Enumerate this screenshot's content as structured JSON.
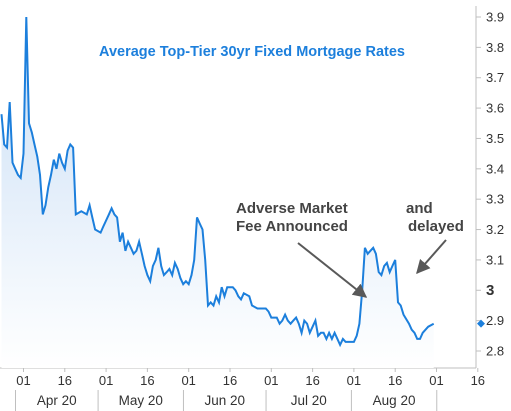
{
  "chart_data": {
    "type": "area",
    "title": "Average Top-Tier 30yr Fixed Mortgage Rates",
    "ylim": [
      2.75,
      3.92
    ],
    "y_ticks": [
      "3.9",
      "3.8",
      "3.7",
      "3.6",
      "3.5",
      "3.4",
      "3.3",
      "3.2",
      "3.1",
      "3",
      "2.9",
      "2.8"
    ],
    "emphasized_y_tick": "3",
    "x_day_ticks": [
      "01",
      "16",
      "01",
      "16",
      "01",
      "16",
      "01",
      "16",
      "01",
      "16",
      "01",
      "16"
    ],
    "x_month_labels": [
      "Apr 20",
      "May 20",
      "Jun 20",
      "Jul 20",
      "Aug 20"
    ],
    "series": [
      {
        "values": [
          [
            -8,
            3.58
          ],
          [
            -7,
            3.48
          ],
          [
            -6,
            3.47
          ],
          [
            -5,
            3.62
          ],
          [
            -4,
            3.42
          ],
          [
            -3,
            3.4
          ],
          [
            -2,
            3.38
          ],
          [
            -1,
            3.37
          ],
          [
            0,
            3.45
          ],
          [
            1,
            3.9
          ],
          [
            2,
            3.55
          ],
          [
            3,
            3.52
          ],
          [
            4,
            3.48
          ],
          [
            5,
            3.44
          ],
          [
            6,
            3.38
          ],
          [
            7,
            3.25
          ],
          [
            8,
            3.28
          ],
          [
            9,
            3.34
          ],
          [
            10,
            3.38
          ],
          [
            11,
            3.43
          ],
          [
            12,
            3.4
          ],
          [
            13,
            3.45
          ],
          [
            14,
            3.42
          ],
          [
            15,
            3.4
          ],
          [
            16,
            3.46
          ],
          [
            17,
            3.48
          ],
          [
            18,
            3.47
          ],
          [
            19,
            3.25
          ],
          [
            21,
            3.26
          ],
          [
            23,
            3.25
          ],
          [
            24,
            3.28
          ],
          [
            25,
            3.24
          ],
          [
            26,
            3.2
          ],
          [
            28,
            3.19
          ],
          [
            29,
            3.21
          ],
          [
            31,
            3.25
          ],
          [
            32,
            3.27
          ],
          [
            33,
            3.25
          ],
          [
            34,
            3.24
          ],
          [
            35,
            3.16
          ],
          [
            36,
            3.19
          ],
          [
            37,
            3.13
          ],
          [
            38,
            3.16
          ],
          [
            39,
            3.14
          ],
          [
            40,
            3.12
          ],
          [
            41,
            3.13
          ],
          [
            42,
            3.16
          ],
          [
            43,
            3.12
          ],
          [
            44,
            3.08
          ],
          [
            45,
            3.05
          ],
          [
            46,
            3.03
          ],
          [
            47,
            3.08
          ],
          [
            48,
            3.1
          ],
          [
            49,
            3.14
          ],
          [
            50,
            3.08
          ],
          [
            51,
            3.05
          ],
          [
            52,
            3.06
          ],
          [
            53,
            3.07
          ],
          [
            54,
            3.05
          ],
          [
            55,
            3.09
          ],
          [
            56,
            3.07
          ],
          [
            57,
            3.04
          ],
          [
            58,
            3.02
          ],
          [
            59,
            3.03
          ],
          [
            60,
            3.02
          ],
          [
            61,
            3.05
          ],
          [
            62,
            3.1
          ],
          [
            63,
            3.24
          ],
          [
            64,
            3.22
          ],
          [
            65,
            3.2
          ],
          [
            66,
            3.1
          ],
          [
            67,
            2.95
          ],
          [
            68,
            2.96
          ],
          [
            69,
            2.95
          ],
          [
            70,
            2.98
          ],
          [
            71,
            2.96
          ],
          [
            72,
            3.01
          ],
          [
            73,
            2.98
          ],
          [
            74,
            3.01
          ],
          [
            76,
            3.01
          ],
          [
            77,
            3.0
          ],
          [
            78,
            2.98
          ],
          [
            79,
            2.97
          ],
          [
            80,
            2.99
          ],
          [
            82,
            2.98
          ],
          [
            83,
            2.95
          ],
          [
            85,
            2.94
          ],
          [
            88,
            2.94
          ],
          [
            89,
            2.93
          ],
          [
            90,
            2.91
          ],
          [
            92,
            2.91
          ],
          [
            93,
            2.89
          ],
          [
            94,
            2.9
          ],
          [
            95,
            2.92
          ],
          [
            96,
            2.9
          ],
          [
            97,
            2.89
          ],
          [
            98,
            2.9
          ],
          [
            99,
            2.91
          ],
          [
            100,
            2.89
          ],
          [
            101,
            2.86
          ],
          [
            102,
            2.9
          ],
          [
            103,
            2.89
          ],
          [
            104,
            2.86
          ],
          [
            105,
            2.88
          ],
          [
            106,
            2.9
          ],
          [
            107,
            2.85
          ],
          [
            108,
            2.86
          ],
          [
            109,
            2.86
          ],
          [
            110,
            2.84
          ],
          [
            111,
            2.86
          ],
          [
            112,
            2.84
          ],
          [
            113,
            2.86
          ],
          [
            114,
            2.84
          ],
          [
            115,
            2.82
          ],
          [
            116,
            2.84
          ],
          [
            117,
            2.83
          ],
          [
            120,
            2.83
          ],
          [
            121,
            2.85
          ],
          [
            122,
            2.89
          ],
          [
            123,
            3.0
          ],
          [
            124,
            3.14
          ],
          [
            125,
            3.12
          ],
          [
            126,
            3.13
          ],
          [
            127,
            3.14
          ],
          [
            128,
            3.12
          ],
          [
            129,
            3.06
          ],
          [
            130,
            3.05
          ],
          [
            131,
            3.08
          ],
          [
            132,
            3.09
          ],
          [
            133,
            3.06
          ],
          [
            134,
            3.08
          ],
          [
            135,
            3.1
          ],
          [
            136,
            2.96
          ],
          [
            137,
            2.95
          ],
          [
            138,
            2.92
          ],
          [
            140,
            2.89
          ],
          [
            141,
            2.87
          ],
          [
            142,
            2.86
          ],
          [
            143,
            2.84
          ],
          [
            144,
            2.84
          ],
          [
            145,
            2.86
          ],
          [
            147,
            2.88
          ],
          [
            149,
            2.89
          ]
        ]
      }
    ],
    "annotations": [
      {
        "lines": [
          "Adverse Market",
          "Fee Announced"
        ]
      },
      {
        "lines": [
          "and",
          "delayed"
        ]
      }
    ],
    "line_color": "#1c7fdc",
    "fill_color": "#e6f0fb",
    "arrow_color": "#595959",
    "last_value_marker_color": "#1c7fdc"
  }
}
